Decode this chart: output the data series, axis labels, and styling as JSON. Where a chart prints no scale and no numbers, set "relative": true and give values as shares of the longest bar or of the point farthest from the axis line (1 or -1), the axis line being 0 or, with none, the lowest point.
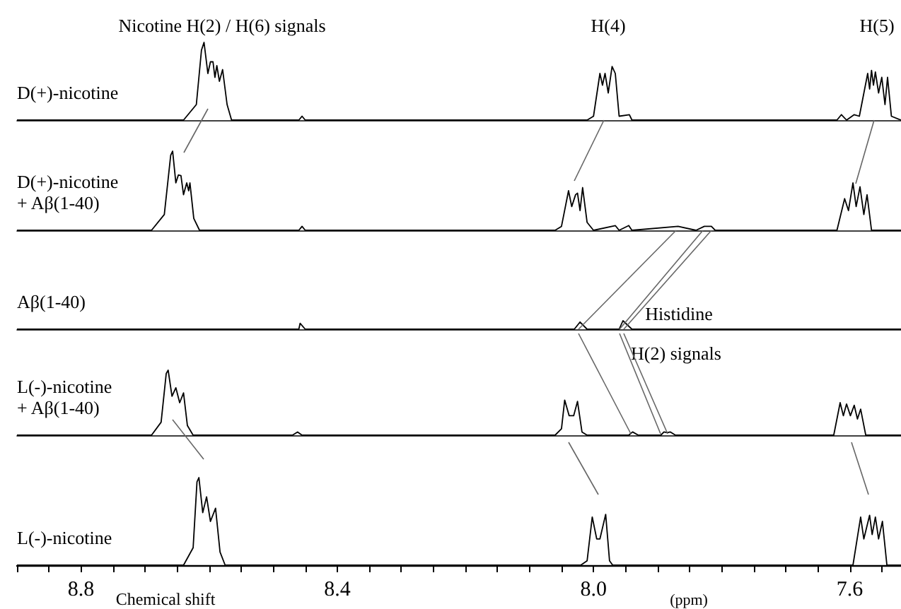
{
  "chart_data": [
    {
      "type": "line",
      "relative": true,
      "xlim": [
        8.9,
        7.52
      ],
      "tick_labels": false,
      "marker": "none",
      "line_style": "solid",
      "annotations": [
        "Nicotine H(2) / H(6) signals",
        "H(4)",
        "H(5)"
      ],
      "series": [
        {
          "name": "D(+)-nicotine",
          "color": "#000000",
          "x": [
            8.9,
            8.64,
            8.62,
            8.612,
            8.608,
            8.602,
            8.598,
            8.594,
            8.591,
            8.588,
            8.584,
            8.579,
            8.572,
            8.565,
            8.46,
            8.455,
            8.45,
            8.01,
            8.0,
            7.99,
            7.986,
            7.982,
            7.977,
            7.971,
            7.966,
            7.96,
            7.944,
            7.94,
            7.62,
            7.613,
            7.605,
            7.593,
            7.585,
            7.572,
            7.569,
            7.566,
            7.563,
            7.56,
            7.555,
            7.55,
            7.545,
            7.541,
            7.535,
            7.52
          ],
          "values": [
            0,
            0,
            0.2,
            0.9,
            1.0,
            0.6,
            0.75,
            0.75,
            0.55,
            0.7,
            0.5,
            0.65,
            0.2,
            0,
            0,
            0.05,
            0,
            0,
            0.05,
            0.6,
            0.45,
            0.6,
            0.35,
            0.69,
            0.6,
            0.05,
            0.07,
            0,
            0,
            0.07,
            0,
            0.07,
            0.05,
            0.6,
            0.4,
            0.64,
            0.45,
            0.62,
            0.35,
            0.55,
            0.2,
            0.55,
            0.05,
            0
          ]
        }
      ]
    },
    {
      "type": "line",
      "relative": true,
      "xlim": [
        8.9,
        7.52
      ],
      "tick_labels": false,
      "marker": "none",
      "line_style": "solid",
      "series": [
        {
          "name": "D(+)-nicotine\n+ Aβ(1-40)",
          "color": "#000000",
          "x": [
            8.9,
            8.69,
            8.67,
            8.66,
            8.657,
            8.652,
            8.648,
            8.644,
            8.64,
            8.635,
            8.632,
            8.63,
            8.624,
            8.615,
            8.46,
            8.455,
            8.45,
            8.06,
            8.05,
            8.039,
            8.034,
            8.028,
            8.025,
            8.021,
            8.017,
            8.01,
            8.0,
            7.966,
            7.96,
            7.945,
            7.94,
            7.868,
            7.84,
            7.827,
            7.816,
            7.81,
            7.62,
            7.608,
            7.602,
            7.595,
            7.59,
            7.584,
            7.578,
            7.573,
            7.566,
            7.52
          ],
          "values": [
            0,
            0,
            0.2,
            0.95,
            1.0,
            0.6,
            0.7,
            0.69,
            0.45,
            0.6,
            0.5,
            0.6,
            0.15,
            0,
            0,
            0.05,
            0,
            0,
            0.05,
            0.5,
            0.3,
            0.45,
            0.47,
            0.25,
            0.54,
            0.1,
            0,
            0.06,
            0,
            0.06,
            0,
            0.05,
            0,
            0.05,
            0.05,
            0,
            0,
            0.4,
            0.25,
            0.6,
            0.3,
            0.55,
            0.2,
            0.45,
            0,
            0
          ]
        }
      ]
    },
    {
      "type": "line",
      "relative": true,
      "xlim": [
        8.9,
        7.52
      ],
      "tick_labels": false,
      "marker": "none",
      "line_style": "solid",
      "annotations": [
        "Histidine",
        "H(2) signals"
      ],
      "series": [
        {
          "name": "Aβ(1-40)",
          "color": "#000000",
          "x": [
            8.9,
            8.46,
            8.458,
            8.45,
            8.03,
            8.021,
            8.01,
            7.96,
            7.954,
            7.94,
            7.52
          ],
          "values": [
            0,
            0,
            0.7,
            0,
            0,
            0.85,
            0,
            0,
            1.0,
            0,
            0
          ]
        }
      ]
    },
    {
      "type": "line",
      "relative": true,
      "xlim": [
        8.9,
        7.52
      ],
      "tick_labels": false,
      "marker": "none",
      "line_style": "solid",
      "series": [
        {
          "name": "L(-)-nicotine\n+ Aβ(1-40)",
          "color": "#000000",
          "x": [
            8.9,
            8.69,
            8.675,
            8.667,
            8.664,
            8.658,
            8.652,
            8.646,
            8.64,
            8.634,
            8.625,
            8.47,
            8.462,
            8.455,
            8.06,
            8.05,
            8.045,
            8.038,
            8.031,
            8.025,
            8.018,
            8.01,
            7.945,
            7.939,
            7.93,
            7.895,
            7.89,
            7.885,
            7.88,
            7.872,
            7.625,
            7.615,
            7.61,
            7.605,
            7.599,
            7.593,
            7.588,
            7.583,
            7.575,
            7.52
          ],
          "values": [
            0,
            0,
            0.2,
            0.95,
            1.0,
            0.6,
            0.73,
            0.5,
            0.65,
            0.15,
            0,
            0,
            0.05,
            0,
            0,
            0.1,
            0.54,
            0.3,
            0.3,
            0.52,
            0.05,
            0,
            0,
            0.05,
            0,
            0,
            0.05,
            0.04,
            0.05,
            0,
            0,
            0.5,
            0.3,
            0.48,
            0.3,
            0.46,
            0.25,
            0.4,
            0,
            0
          ]
        }
      ]
    },
    {
      "type": "line",
      "relative": true,
      "xlim": [
        8.9,
        7.52
      ],
      "tick_labels": "x",
      "marker": "none",
      "line_style": "solid",
      "xlabel": "Chemical shift",
      "annotations": [
        "(ppm)"
      ],
      "xticks": [
        {
          "value": 8.9,
          "label": null
        },
        {
          "value": 8.85,
          "label": null
        },
        8.8,
        {
          "value": 8.75,
          "label": null
        },
        {
          "value": 8.7,
          "label": null
        },
        {
          "value": 8.65,
          "label": null
        },
        {
          "value": 8.6,
          "label": null
        },
        {
          "value": 8.55,
          "label": null
        },
        {
          "value": 8.5,
          "label": null
        },
        {
          "value": 8.45,
          "label": null
        },
        8.4,
        {
          "value": 8.35,
          "label": null
        },
        {
          "value": 8.3,
          "label": null
        },
        {
          "value": 8.25,
          "label": null
        },
        {
          "value": 8.2,
          "label": null
        },
        {
          "value": 8.15,
          "label": null
        },
        {
          "value": 8.1,
          "label": null
        },
        {
          "value": 8.05,
          "label": null
        },
        {
          "value": 8.0,
          "label": "8.0"
        },
        {
          "value": 7.95,
          "label": null
        },
        {
          "value": 7.9,
          "label": null
        },
        {
          "value": 7.85,
          "label": null
        },
        {
          "value": 7.8,
          "label": null
        },
        {
          "value": 7.75,
          "label": null
        },
        {
          "value": 7.7,
          "label": null
        },
        {
          "value": 7.65,
          "label": null
        },
        7.6,
        {
          "value": 7.55,
          "label": null
        }
      ],
      "series": [
        {
          "name": "L(-)-nicotine",
          "color": "#000000",
          "x": [
            8.9,
            8.64,
            8.625,
            8.619,
            8.616,
            8.61,
            8.604,
            8.598,
            8.59,
            8.583,
            8.575,
            8.02,
            8.01,
            8.002,
            7.995,
            7.99,
            7.981,
            7.975,
            7.97,
            7.595,
            7.583,
            7.578,
            7.569,
            7.565,
            7.56,
            7.555,
            7.549,
            7.542,
            7.52
          ],
          "values": [
            0,
            0,
            0.2,
            0.95,
            1.0,
            0.6,
            0.78,
            0.5,
            0.65,
            0.15,
            0,
            0,
            0.05,
            0.55,
            0.3,
            0.3,
            0.58,
            0.05,
            0,
            0,
            0.55,
            0.3,
            0.57,
            0.35,
            0.55,
            0.3,
            0.5,
            0,
            0
          ]
        }
      ]
    }
  ]
}
